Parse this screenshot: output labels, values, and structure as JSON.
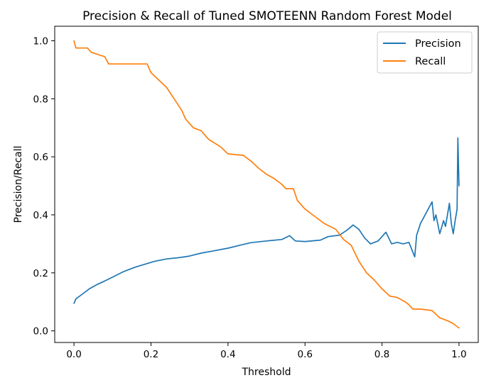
{
  "chart_data": {
    "type": "line",
    "title": "Precision & Recall of Tuned SMOTEENN Random Forest Model",
    "xlabel": "Threshold",
    "ylabel": "Precision/Recall",
    "xlim": [
      -0.05,
      1.05
    ],
    "ylim": [
      -0.04,
      1.05
    ],
    "xticks": [
      "0.0",
      "0.2",
      "0.4",
      "0.6",
      "0.8",
      "1.0"
    ],
    "yticks": [
      "0.0",
      "0.2",
      "0.4",
      "0.6",
      "0.8",
      "1.0"
    ],
    "grid": false,
    "legend_position": "top-right",
    "series": [
      {
        "name": "Precision",
        "color": "#1f77b4",
        "x": [
          0.0,
          0.005,
          0.02,
          0.04,
          0.06,
          0.08,
          0.1,
          0.13,
          0.16,
          0.19,
          0.21,
          0.24,
          0.27,
          0.3,
          0.33,
          0.36,
          0.4,
          0.44,
          0.46,
          0.5,
          0.54,
          0.56,
          0.575,
          0.6,
          0.64,
          0.66,
          0.69,
          0.71,
          0.725,
          0.74,
          0.755,
          0.77,
          0.79,
          0.81,
          0.825,
          0.84,
          0.855,
          0.87,
          0.885,
          0.89,
          0.9,
          0.92,
          0.93,
          0.935,
          0.94,
          0.95,
          0.96,
          0.965,
          0.975,
          0.98,
          0.985,
          0.99,
          0.995,
          0.997,
          1.0
        ],
        "y": [
          0.095,
          0.11,
          0.125,
          0.145,
          0.16,
          0.172,
          0.185,
          0.205,
          0.22,
          0.232,
          0.24,
          0.248,
          0.252,
          0.258,
          0.268,
          0.275,
          0.285,
          0.298,
          0.304,
          0.31,
          0.315,
          0.328,
          0.31,
          0.308,
          0.313,
          0.325,
          0.33,
          0.348,
          0.365,
          0.35,
          0.32,
          0.3,
          0.31,
          0.34,
          0.3,
          0.305,
          0.3,
          0.305,
          0.255,
          0.33,
          0.37,
          0.42,
          0.445,
          0.38,
          0.4,
          0.335,
          0.38,
          0.36,
          0.44,
          0.37,
          0.335,
          0.38,
          0.42,
          0.665,
          0.5
        ]
      },
      {
        "name": "Recall",
        "color": "#ff7f0e",
        "x": [
          0.0,
          0.005,
          0.035,
          0.045,
          0.08,
          0.09,
          0.11,
          0.19,
          0.2,
          0.22,
          0.24,
          0.26,
          0.28,
          0.29,
          0.31,
          0.33,
          0.35,
          0.38,
          0.4,
          0.44,
          0.46,
          0.48,
          0.5,
          0.52,
          0.54,
          0.55,
          0.57,
          0.58,
          0.6,
          0.62,
          0.65,
          0.68,
          0.7,
          0.72,
          0.74,
          0.76,
          0.78,
          0.8,
          0.82,
          0.84,
          0.86,
          0.87,
          0.88,
          0.9,
          0.93,
          0.95,
          0.97,
          0.985,
          0.995,
          1.0
        ],
        "y": [
          1.0,
          0.975,
          0.975,
          0.96,
          0.945,
          0.92,
          0.92,
          0.92,
          0.89,
          0.865,
          0.84,
          0.8,
          0.76,
          0.73,
          0.7,
          0.69,
          0.66,
          0.635,
          0.61,
          0.605,
          0.585,
          0.56,
          0.54,
          0.525,
          0.505,
          0.49,
          0.49,
          0.45,
          0.42,
          0.4,
          0.37,
          0.35,
          0.315,
          0.295,
          0.24,
          0.2,
          0.175,
          0.145,
          0.12,
          0.115,
          0.1,
          0.09,
          0.075,
          0.075,
          0.07,
          0.045,
          0.035,
          0.025,
          0.015,
          0.01
        ]
      }
    ]
  }
}
